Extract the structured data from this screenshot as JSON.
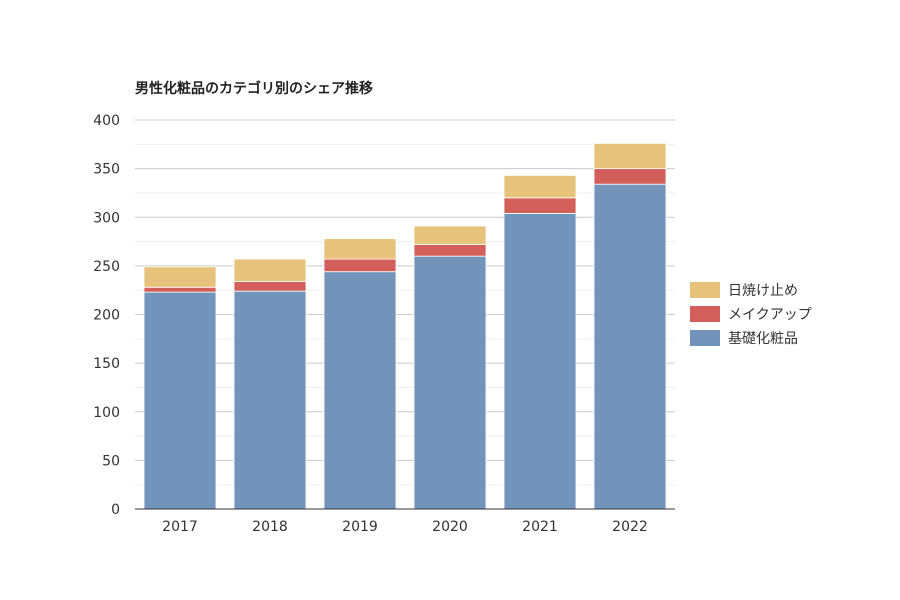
{
  "chart_data": {
    "type": "bar",
    "stacked": true,
    "title": "男性化粧品のカテゴリ別のシェア推移",
    "xlabel": "",
    "ylabel": "",
    "categories": [
      "2017",
      "2018",
      "2019",
      "2020",
      "2021",
      "2022"
    ],
    "series": [
      {
        "name": "基礎化粧品",
        "color": "#7394ba",
        "values": [
          223,
          224,
          244,
          260,
          304,
          334
        ]
      },
      {
        "name": "メイクアップ",
        "color": "#d35f5b",
        "values": [
          5,
          10,
          13,
          12,
          16,
          16
        ]
      },
      {
        "name": "日焼け止め",
        "color": "#e6c27a",
        "values": [
          21,
          23,
          21,
          19,
          23,
          26
        ]
      }
    ],
    "ylim": [
      0,
      400
    ],
    "yticks": [
      0,
      50,
      100,
      150,
      200,
      250,
      300,
      350,
      400
    ],
    "grid": true,
    "legend_position": "right"
  }
}
